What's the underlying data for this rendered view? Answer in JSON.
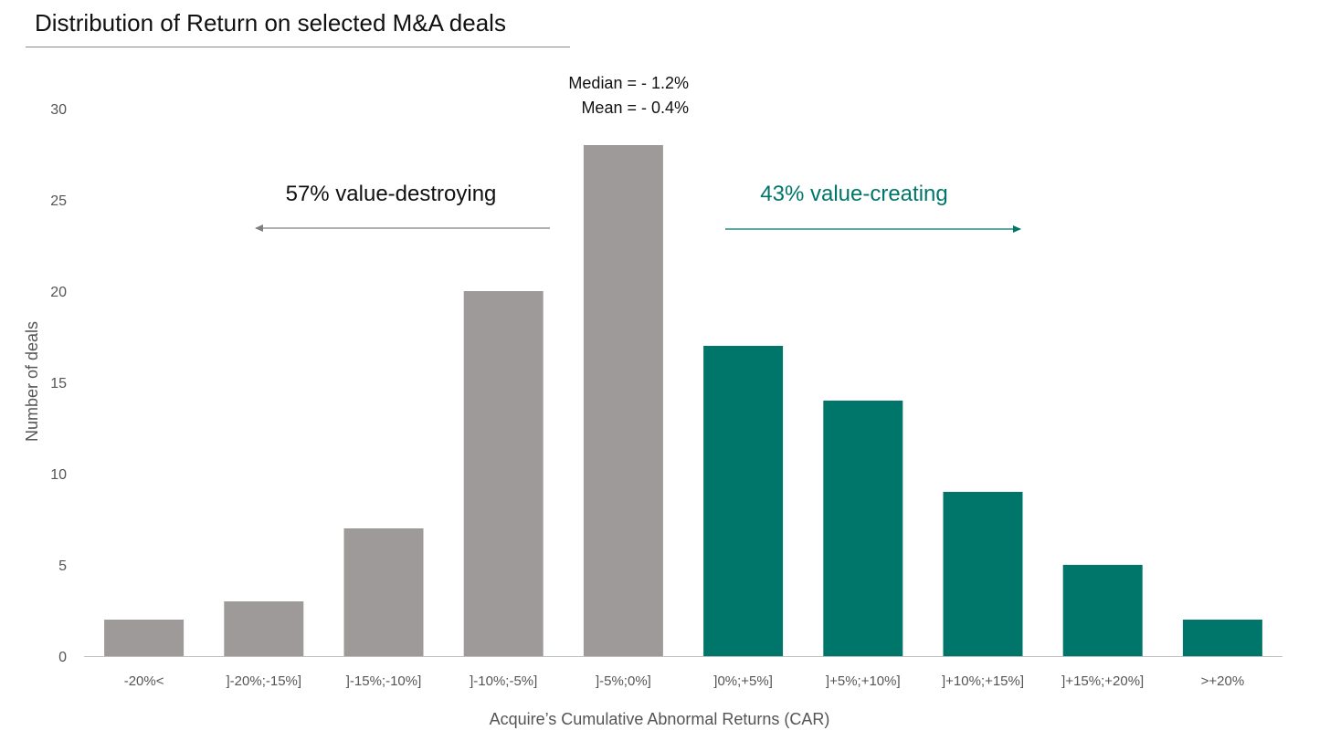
{
  "title": "Distribution of Return on selected M&A deals",
  "colors": {
    "destroy": "#9d9a99",
    "create": "#00766b",
    "axis": "#bfbfbf",
    "text": "#555555"
  },
  "chart_data": {
    "type": "bar",
    "title": "Distribution of Return on selected M&A deals",
    "xlabel": "Acquire’s Cumulative Abnormal Returns (CAR)",
    "ylabel": "Number of deals",
    "ylim": [
      0,
      30
    ],
    "yticks": [
      0,
      5,
      10,
      15,
      20,
      25,
      30
    ],
    "categories": [
      "-20%<",
      "]-20%;-15%]",
      "]-15%;-10%]",
      "]-10%;-5%]",
      "]-5%;0%]",
      "]0%;+5%]",
      "]+5%;+10%]",
      "]+10%;+15%]",
      "]+15%;+20%]",
      ">+20%"
    ],
    "values": [
      2,
      3,
      7,
      20,
      28,
      17,
      14,
      9,
      5,
      2
    ],
    "groups": [
      "destroy",
      "destroy",
      "destroy",
      "destroy",
      "destroy",
      "create",
      "create",
      "create",
      "create",
      "create"
    ],
    "annotations": {
      "median": "Median = - 1.2%",
      "mean": "Mean = - 0.4%",
      "destroying": "57% value-destroying",
      "creating": "43% value-creating"
    }
  }
}
